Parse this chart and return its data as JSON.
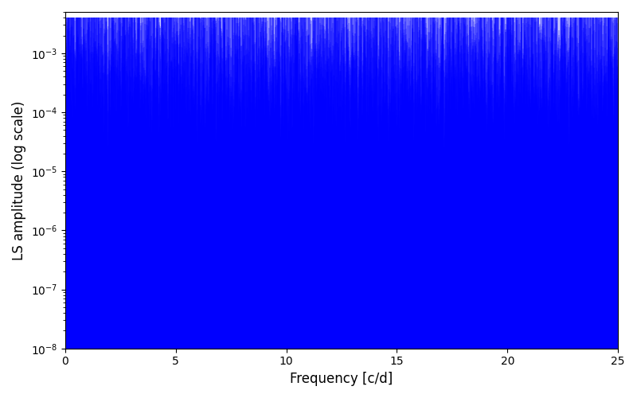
{
  "xlabel": "Frequency [c/d]",
  "ylabel": "LS amplitude (log scale)",
  "xlim": [
    0,
    25
  ],
  "ylim": [
    1e-08,
    0.005
  ],
  "line_color": "#0000FF",
  "background_color": "#ffffff",
  "figsize": [
    8.0,
    5.0
  ],
  "dpi": 100,
  "n_points": 15000,
  "freq_max": 25.0,
  "seed": 12345
}
